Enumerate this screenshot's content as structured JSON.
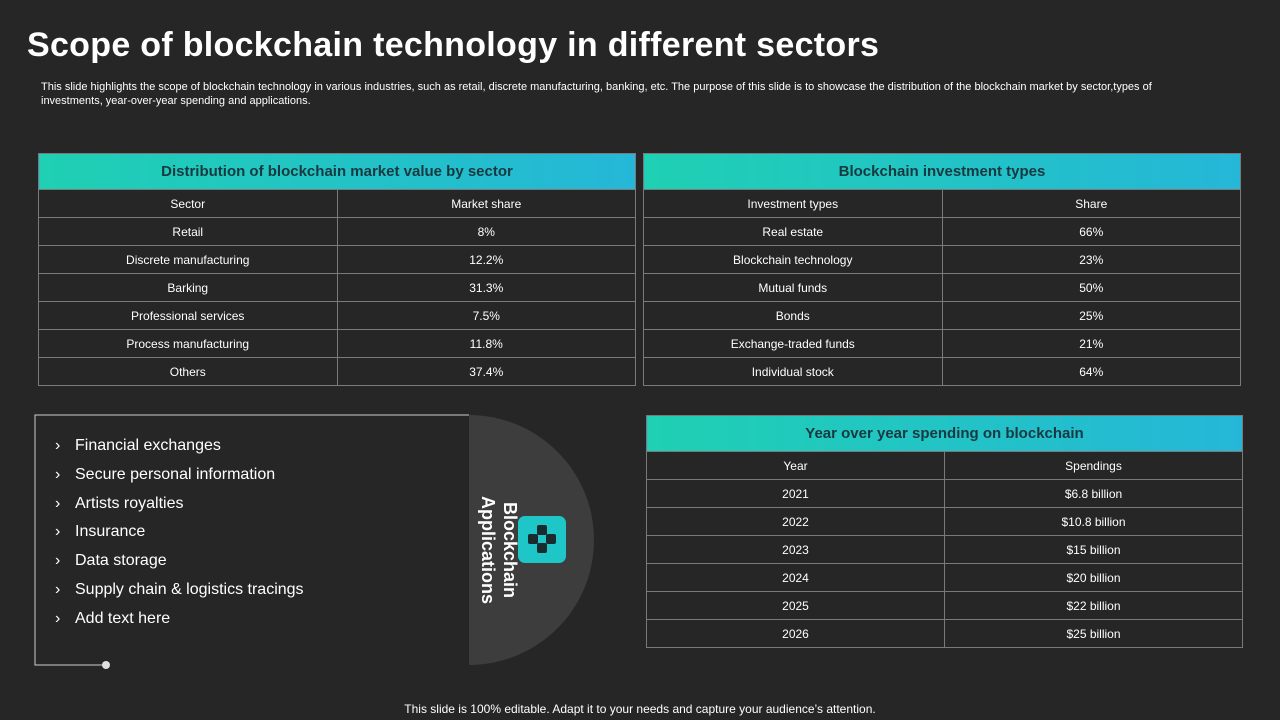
{
  "title": "Scope of blockchain technology in different sectors",
  "description": "This slide highlights the scope of blockchain technology in various industries, such as retail, discrete manufacturing, banking, etc. The purpose of this slide is to showcase the distribution of the blockchain market by sector,types of investments, year-over-year spending and applications.",
  "tables": [
    {
      "title": "Distribution of blockchain market value by sector",
      "columns": [
        "Sector",
        "Market share"
      ],
      "rows": [
        [
          "Retail",
          "8%"
        ],
        [
          "Discrete manufacturing",
          "12.2%"
        ],
        [
          "Barking",
          "31.3%"
        ],
        [
          "Professional services",
          "7.5%"
        ],
        [
          "Process manufacturing",
          "11.8%"
        ],
        [
          "Others",
          "37.4%"
        ]
      ]
    },
    {
      "title": "Blockchain investment types",
      "columns": [
        "Investment types",
        "Share"
      ],
      "rows": [
        [
          "Real estate",
          "66%"
        ],
        [
          "Blockchain technology",
          "23%"
        ],
        [
          "Mutual funds",
          "50%"
        ],
        [
          "Bonds",
          "25%"
        ],
        [
          "Exchange-traded funds",
          "21%"
        ],
        [
          "Individual stock",
          "64%"
        ]
      ]
    },
    {
      "title": "Year over year spending on blockchain",
      "columns": [
        "Year",
        "Spendings"
      ],
      "rows": [
        [
          "2021",
          "$6.8 billion"
        ],
        [
          "2022",
          "$10.8 billion"
        ],
        [
          "2023",
          "$15 billion"
        ],
        [
          "2024",
          "$20 billion"
        ],
        [
          "2025",
          "$22 billion"
        ],
        [
          "2026",
          "$25 billion"
        ]
      ]
    }
  ],
  "applications": {
    "label": "Blockchain Applications",
    "items": [
      "Financial exchanges",
      "Secure personal information",
      "Artists royalties",
      "Insurance",
      "Data storage",
      "Supply chain & logistics tracings",
      "Add text here"
    ]
  },
  "footer": "This slide is 100% editable. Adapt it to your needs and capture your audience’s attention."
}
